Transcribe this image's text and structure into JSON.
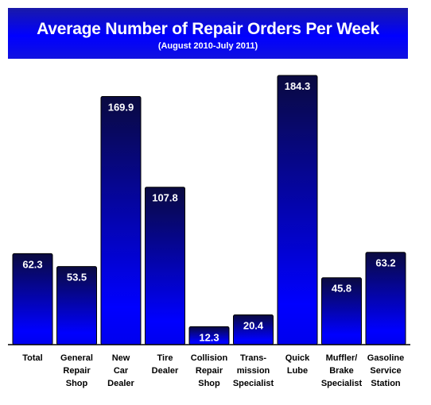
{
  "header": {
    "title": "Average Number of Repair Orders Per Week",
    "subtitle": "(August 2010-July 2011)"
  },
  "colors": {
    "banner": "#0000ff",
    "bar_top": "#0a0a40",
    "bar_bottom": "#0000ff",
    "label": "#ffffff"
  },
  "chart_data": {
    "type": "bar",
    "title": "Average Number of Repair Orders Per Week",
    "subtitle": "(August 2010-July 2011)",
    "categories": [
      "Total",
      "General Repair Shop",
      "New Car Dealer",
      "Tire Dealer",
      "Collision Repair Shop",
      "Trans- mission Specialist",
      "Quick Lube",
      "Muffler/ Brake Specialist",
      "Gasoline Service Station"
    ],
    "category_lines": [
      [
        "Total"
      ],
      [
        "General",
        "Repair",
        "Shop"
      ],
      [
        "New",
        "Car",
        "Dealer"
      ],
      [
        "Tire",
        "Dealer"
      ],
      [
        "Collision",
        "Repair",
        "Shop"
      ],
      [
        "Trans-",
        "mission",
        "Specialist"
      ],
      [
        "Quick",
        "Lube"
      ],
      [
        "Muffler/",
        "Brake",
        "Specialist"
      ],
      [
        "Gasoline",
        "Service",
        "Station"
      ]
    ],
    "values": [
      62.3,
      53.5,
      169.9,
      107.8,
      12.3,
      20.4,
      184.3,
      45.8,
      63.2
    ],
    "value_labels": [
      "62.3",
      "53.5",
      "169.9",
      "107.8",
      "12.3",
      "20.4",
      "184.3",
      "45.8",
      "63.2"
    ],
    "ylim": [
      0,
      187
    ],
    "grid": false,
    "legend": "none"
  }
}
